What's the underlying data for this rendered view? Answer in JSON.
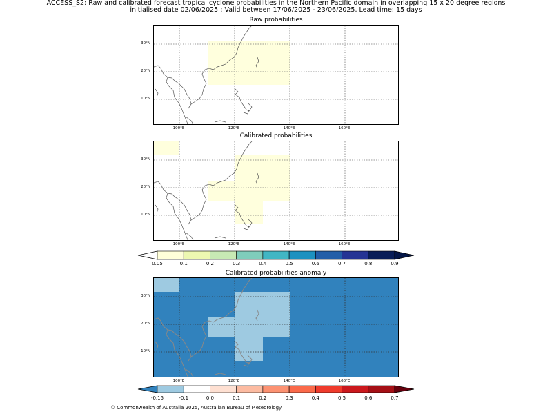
{
  "header": {
    "line1": "ACCESS_S2: Raw and calibrated forecast tropical cyclone probabilities in the Northern Pacific domain in overlapping 15 x 20 degree regions",
    "line2": "initialised date 02/06/2025 :  Valid between 17/06/2025 - 23/06/2025. Lead time: 15 days"
  },
  "panels": {
    "raw": {
      "title": "Raw probabilities"
    },
    "cal": {
      "title": "Calibrated probabilities"
    },
    "anom": {
      "title": "Calibrated probabilities anomaly"
    }
  },
  "axes": {
    "lat_labels": [
      "30°N",
      "20°N",
      "10°N"
    ],
    "lon_labels": [
      "100°E",
      "120°E",
      "140°E",
      "160°E"
    ]
  },
  "colorbar_prob": {
    "labels": [
      "0.05",
      "0.1",
      "0.2",
      "0.3",
      "0.4",
      "0.5",
      "0.6",
      "0.7",
      "0.8",
      "0.9"
    ],
    "colors": [
      "#ffffd9",
      "#edf8b1",
      "#c7e9b4",
      "#7fcdbb",
      "#41b6c4",
      "#1d91c0",
      "#225ea8",
      "#253494",
      "#081d58"
    ],
    "under_color": "#ffffff",
    "over_color": "#041647"
  },
  "colorbar_anom": {
    "labels": [
      "-0.15",
      "-0.1",
      "0.0",
      "0.1",
      "0.2",
      "0.3",
      "0.4",
      "0.5",
      "0.6",
      "0.7"
    ],
    "colors": [
      "#9ecae1",
      "#ffffff",
      "#fee0d2",
      "#fcbba1",
      "#fc9272",
      "#fb6a4a",
      "#ef3b2c",
      "#cb181d",
      "#a50f15"
    ],
    "under_color": "#3182bd",
    "over_color": "#67000d"
  },
  "map_colors": {
    "raw_region": "#ffffdd",
    "anom_background": "#3182bd",
    "anom_region": "#9ecae1"
  },
  "footer": "© Commonwealth of Australia 2025, Australian Bureau of Meteorology"
}
